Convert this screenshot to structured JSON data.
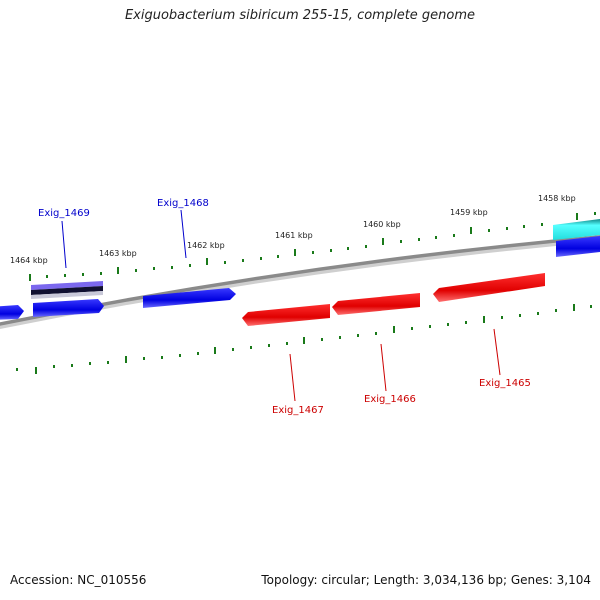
{
  "title": "Exiguobacterium sibiricum 255-15, complete genome",
  "footer": {
    "accession": "Accession: NC_010556",
    "summary": "Topology: circular; Length: 3,034,136 bp; Genes: 3,104"
  },
  "scale_labels": [
    "1464 kbp",
    "1463 kbp",
    "1462 kbp",
    "1461 kbp",
    "1460 kbp",
    "1459 kbp",
    "1458 kbp"
  ],
  "genes": [
    {
      "name": "Exig_1469",
      "strand": "forward",
      "color": "#0000cc"
    },
    {
      "name": "Exig_1468",
      "strand": "forward",
      "color": "#0000cc"
    },
    {
      "name": "Exig_1467",
      "strand": "reverse",
      "color": "#cc0000"
    },
    {
      "name": "Exig_1466",
      "strand": "reverse",
      "color": "#cc0000"
    },
    {
      "name": "Exig_1465",
      "strand": "reverse",
      "color": "#cc0000"
    }
  ],
  "colors": {
    "forward": "#0000ee",
    "reverse": "#ee0000",
    "ticks": "#1a7a1a",
    "backbone": "#888888",
    "feature_purple": "#7b68ee",
    "feature_cyan": "#33dddd"
  }
}
